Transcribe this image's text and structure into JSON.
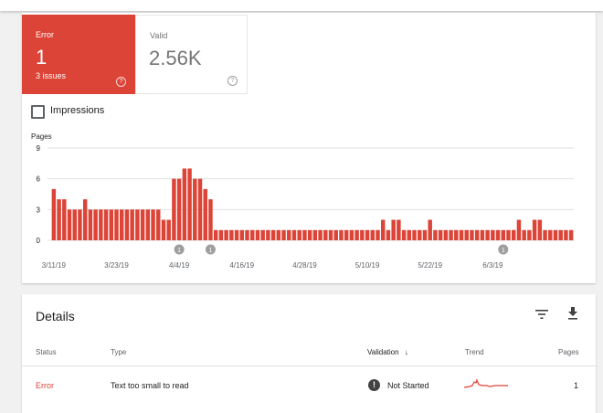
{
  "summary": {
    "error": {
      "label": "Error",
      "value": "1",
      "sub": "3 issues",
      "help": "?"
    },
    "valid": {
      "label": "Valid",
      "value": "2.56K",
      "help": "?"
    },
    "impressions_label": "Impressions"
  },
  "colors": {
    "error": "#db4437",
    "marker": "#9e9e9e",
    "grid": "#e0e0e0"
  },
  "chart_data": {
    "type": "bar",
    "ylabel": "Pages",
    "yticks": [
      "9",
      "6",
      "3",
      "0"
    ],
    "ylim": [
      0,
      9
    ],
    "xtick_labels": [
      "3/11/19",
      "3/23/19",
      "4/4/19",
      "4/16/19",
      "4/28/19",
      "5/10/19",
      "5/22/19",
      "6/3/19"
    ],
    "xtick_indices": [
      0,
      12,
      24,
      36,
      48,
      60,
      72,
      84
    ],
    "annotations": [
      {
        "index": 24,
        "label": "1"
      },
      {
        "index": 30,
        "label": "1"
      },
      {
        "index": 86,
        "label": "1"
      }
    ],
    "values": [
      5,
      4,
      4,
      3,
      3,
      3,
      4,
      3,
      3,
      3,
      3,
      3,
      3,
      3,
      3,
      3,
      3,
      3,
      3,
      3,
      3,
      2,
      2,
      6,
      6,
      7,
      7,
      6,
      6,
      5,
      4,
      1,
      1,
      1,
      1,
      1,
      1,
      1,
      1,
      1,
      1,
      1,
      1,
      1,
      1,
      1,
      1,
      1,
      1,
      1,
      1,
      1,
      1,
      1,
      1,
      1,
      1,
      1,
      1,
      1,
      1,
      1,
      1,
      2,
      1,
      2,
      2,
      1,
      1,
      1,
      1,
      1,
      2,
      1,
      1,
      1,
      1,
      1,
      1,
      1,
      1,
      1,
      1,
      1,
      1,
      1,
      1,
      1,
      1,
      2,
      1,
      1,
      2,
      2,
      1,
      1,
      1,
      1,
      1,
      1
    ],
    "grid": true
  },
  "details": {
    "title": "Details",
    "columns": {
      "status": "Status",
      "type": "Type",
      "validation": "Validation",
      "validation_sort": "↓",
      "trend": "Trend",
      "pages": "Pages"
    },
    "rows": [
      {
        "status": "Error",
        "type": "Text too small to read",
        "validation": "Not Started",
        "pages": "1"
      }
    ]
  }
}
